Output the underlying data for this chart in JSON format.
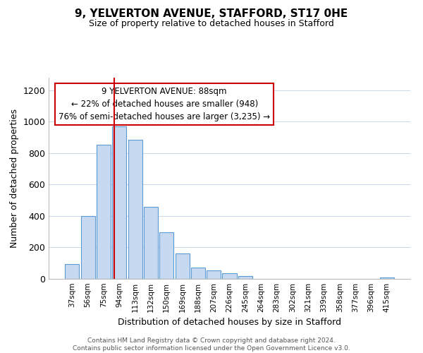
{
  "title": "9, YELVERTON AVENUE, STAFFORD, ST17 0HE",
  "subtitle": "Size of property relative to detached houses in Stafford",
  "xlabel": "Distribution of detached houses by size in Stafford",
  "ylabel": "Number of detached properties",
  "bar_labels": [
    "37sqm",
    "56sqm",
    "75sqm",
    "94sqm",
    "113sqm",
    "132sqm",
    "150sqm",
    "169sqm",
    "188sqm",
    "207sqm",
    "226sqm",
    "245sqm",
    "264sqm",
    "283sqm",
    "302sqm",
    "321sqm",
    "339sqm",
    "358sqm",
    "377sqm",
    "396sqm",
    "415sqm"
  ],
  "bar_values": [
    95,
    400,
    855,
    970,
    885,
    460,
    298,
    160,
    72,
    52,
    35,
    20,
    0,
    0,
    0,
    0,
    0,
    0,
    0,
    0,
    10
  ],
  "bar_color": "#c7d9f0",
  "bar_edge_color": "#5b9bd5",
  "property_line_color": "#cc0000",
  "annotation_line1": "9 YELVERTON AVENUE: 88sqm",
  "annotation_line2": "← 22% of detached houses are smaller (948)",
  "annotation_line3": "76% of semi-detached houses are larger (3,235) →",
  "annotation_box_color": "#ffffff",
  "annotation_box_edge_color": "#cc0000",
  "ylim": [
    0,
    1280
  ],
  "yticks": [
    0,
    200,
    400,
    600,
    800,
    1000,
    1200
  ],
  "footer_text": "Contains HM Land Registry data © Crown copyright and database right 2024.\nContains public sector information licensed under the Open Government Licence v3.0.",
  "background_color": "#ffffff",
  "grid_color": "#c8d8ec"
}
